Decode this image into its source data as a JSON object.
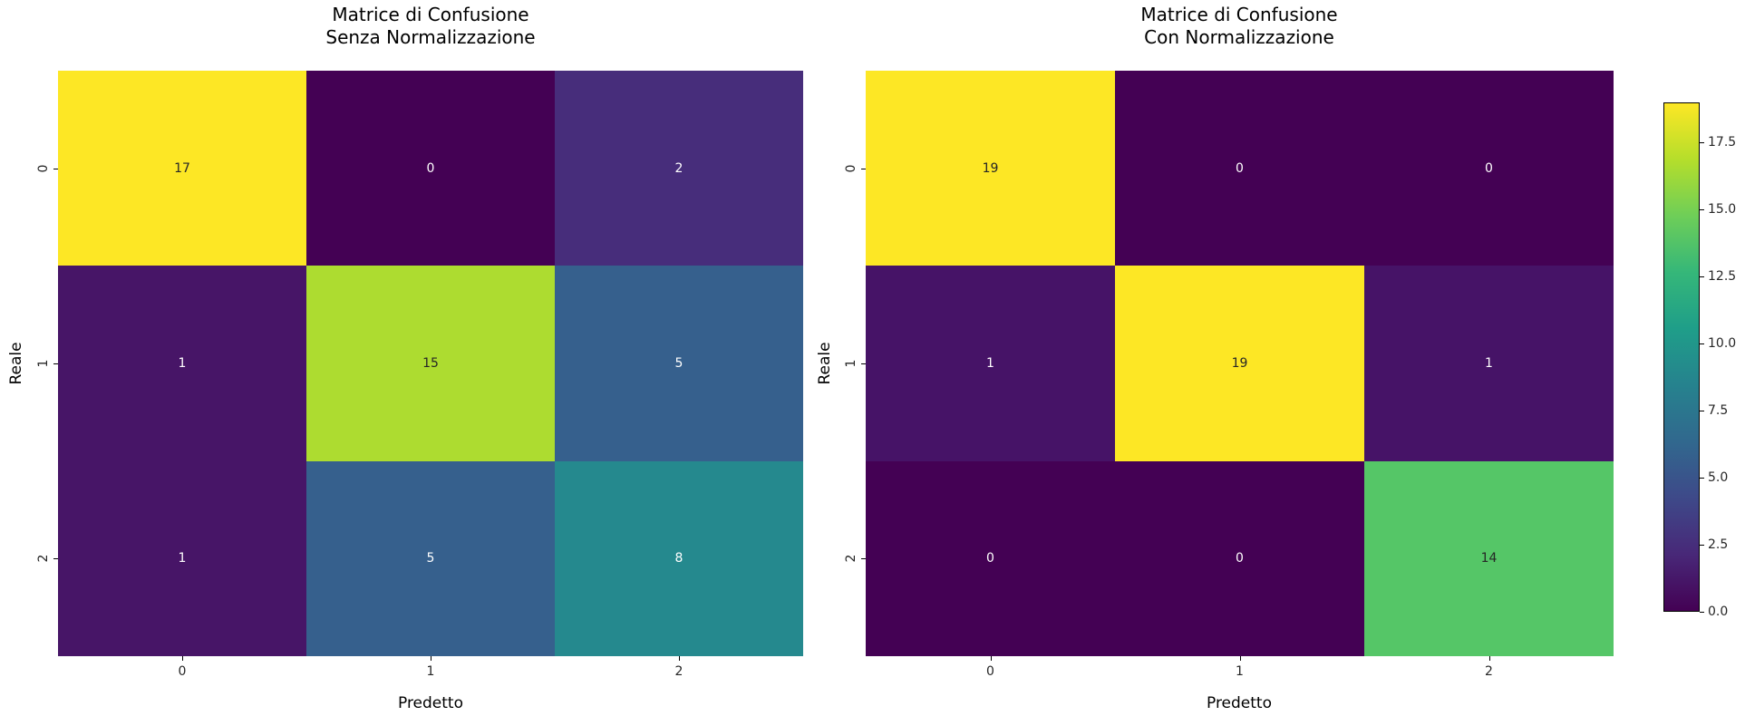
{
  "figure": {
    "background": "#ffffff"
  },
  "plots": [
    {
      "title": "Matrice di Confusione\nSenza Normalizzazione",
      "xlabel": "Predetto",
      "ylabel": "Reale",
      "xticks": [
        "0",
        "1",
        "2"
      ],
      "yticks": [
        "0",
        "1",
        "2"
      ],
      "cells": [
        [
          {
            "value": "17",
            "bg": "#fde725",
            "fg": "#262626"
          },
          {
            "value": "0",
            "bg": "#440154",
            "fg": "#ffffff"
          },
          {
            "value": "2",
            "bg": "#472d7b",
            "fg": "#ffffff"
          }
        ],
        [
          {
            "value": "1",
            "bg": "#471567",
            "fg": "#ffffff"
          },
          {
            "value": "15",
            "bg": "#addc30",
            "fg": "#262626"
          },
          {
            "value": "5",
            "bg": "#36608d",
            "fg": "#ffffff"
          }
        ],
        [
          {
            "value": "1",
            "bg": "#471567",
            "fg": "#ffffff"
          },
          {
            "value": "5",
            "bg": "#36608d",
            "fg": "#ffffff"
          },
          {
            "value": "8",
            "bg": "#25898e",
            "fg": "#ffffff"
          }
        ]
      ]
    },
    {
      "title": "Matrice di Confusione\nCon Normalizzazione",
      "xlabel": "Predetto",
      "ylabel": "Reale",
      "xticks": [
        "0",
        "1",
        "2"
      ],
      "yticks": [
        "0",
        "1",
        "2"
      ],
      "cells": [
        [
          {
            "value": "19",
            "bg": "#fde725",
            "fg": "#262626"
          },
          {
            "value": "0",
            "bg": "#440154",
            "fg": "#ffffff"
          },
          {
            "value": "0",
            "bg": "#440154",
            "fg": "#ffffff"
          }
        ],
        [
          {
            "value": "1",
            "bg": "#461367",
            "fg": "#ffffff"
          },
          {
            "value": "19",
            "bg": "#fde725",
            "fg": "#262626"
          },
          {
            "value": "1",
            "bg": "#461367",
            "fg": "#ffffff"
          }
        ],
        [
          {
            "value": "0",
            "bg": "#440154",
            "fg": "#ffffff"
          },
          {
            "value": "0",
            "bg": "#440154",
            "fg": "#ffffff"
          },
          {
            "value": "14",
            "bg": "#55c667",
            "fg": "#262626"
          }
        ]
      ]
    }
  ],
  "colorbar": {
    "vmin": 0,
    "vmax": 19,
    "tick_values": [
      0,
      2.5,
      5,
      7.5,
      10,
      12.5,
      15,
      17.5
    ],
    "tick_labels": [
      "0.0",
      "2.5",
      "5.0",
      "7.5",
      "10.0",
      "12.5",
      "15.0",
      "17.5"
    ],
    "gradient_bottom_to_top": [
      "#440154",
      "#482878",
      "#3e4989",
      "#31688e",
      "#26828e",
      "#1f9e89",
      "#35b779",
      "#6ece58",
      "#b5de2b",
      "#fde725"
    ]
  },
  "chart_data": [
    {
      "type": "heatmap",
      "title": "Matrice di Confusione Senza Normalizzazione",
      "xlabel": "Predetto",
      "ylabel": "Reale",
      "x_categories": [
        "0",
        "1",
        "2"
      ],
      "y_categories": [
        "0",
        "1",
        "2"
      ],
      "values": [
        [
          17,
          0,
          2
        ],
        [
          1,
          15,
          5
        ],
        [
          1,
          5,
          8
        ]
      ],
      "colormap": "viridis",
      "vmin": 0,
      "vmax": 17,
      "grid": false,
      "legend": "none"
    },
    {
      "type": "heatmap",
      "title": "Matrice di Confusione Con Normalizzazione",
      "xlabel": "Predetto",
      "ylabel": "Reale",
      "x_categories": [
        "0",
        "1",
        "2"
      ],
      "y_categories": [
        "0",
        "1",
        "2"
      ],
      "values": [
        [
          19,
          0,
          0
        ],
        [
          1,
          19,
          1
        ],
        [
          0,
          0,
          14
        ]
      ],
      "colormap": "viridis",
      "vmin": 0,
      "vmax": 19,
      "grid": false,
      "legend": "none",
      "colorbar": {
        "ticks": [
          0.0,
          2.5,
          5.0,
          7.5,
          10.0,
          12.5,
          15.0,
          17.5
        ],
        "range": [
          0,
          19
        ],
        "position": "right"
      }
    }
  ]
}
